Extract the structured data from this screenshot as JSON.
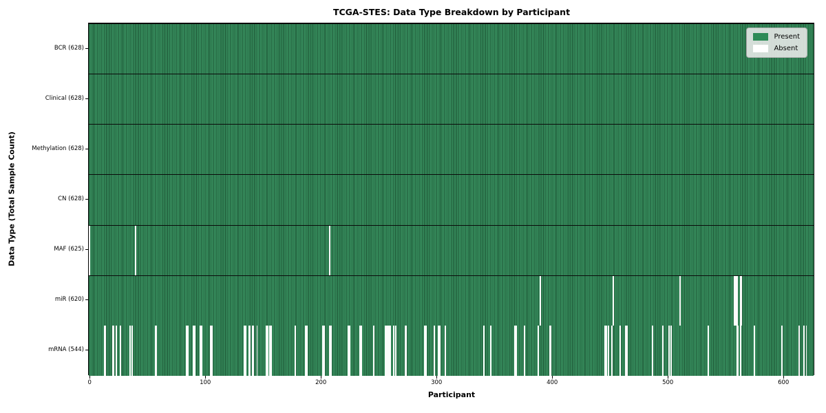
{
  "chart_data": {
    "type": "heatmap",
    "title": "TCGA-STES: Data Type Breakdown by Participant",
    "xlabel": "Participant",
    "ylabel": "Data Type (Total Sample Count)",
    "n_participants": 628,
    "x_ticks": [
      0,
      100,
      200,
      300,
      400,
      500,
      600
    ],
    "xlim": [
      0,
      628
    ],
    "grid": false,
    "legend_position": "upper right",
    "colors": {
      "present": "#2e8b57",
      "absent": "#ffffff",
      "cell_edge": "#1c4f33",
      "legend_bg": "#ebebeb"
    },
    "legend": [
      {
        "label": "Present",
        "color": "#2e8b57"
      },
      {
        "label": "Absent",
        "color": "#ffffff"
      }
    ],
    "rows": [
      {
        "label": "BCR (628)",
        "data_type": "BCR",
        "present_count": 628,
        "absent_participants": []
      },
      {
        "label": "Clinical (628)",
        "data_type": "Clinical",
        "present_count": 628,
        "absent_participants": []
      },
      {
        "label": "Methylation (628)",
        "data_type": "Methylation",
        "present_count": 628,
        "absent_participants": []
      },
      {
        "label": "CN (628)",
        "data_type": "CN",
        "present_count": 628,
        "absent_participants": []
      },
      {
        "label": "MAF (625)",
        "data_type": "MAF",
        "present_count": 625,
        "absent_participants": [
          0,
          40,
          208
        ]
      },
      {
        "label": "miR (620)",
        "data_type": "miR",
        "present_count": 620,
        "absent_participants": [
          390,
          453,
          511,
          558,
          559,
          560,
          563,
          564
        ]
      },
      {
        "label": "mRNA (544)",
        "data_type": "mRNA",
        "present_count": 544,
        "absent_participants": [
          13,
          14,
          20,
          21,
          23,
          27,
          35,
          37,
          57,
          58,
          84,
          85,
          90,
          91,
          96,
          97,
          105,
          106,
          134,
          135,
          138,
          139,
          141,
          142,
          145,
          153,
          154,
          156,
          157,
          178,
          187,
          188,
          202,
          203,
          208,
          209,
          224,
          225,
          234,
          235,
          246,
          256,
          257,
          258,
          259,
          260,
          263,
          265,
          273,
          274,
          290,
          291,
          298,
          302,
          303,
          308,
          341,
          347,
          368,
          369,
          376,
          388,
          398,
          399,
          446,
          447,
          449,
          452,
          459,
          464,
          465,
          487,
          496,
          501,
          503,
          535,
          560,
          561,
          563,
          575,
          599,
          614,
          618,
          620
        ]
      }
    ]
  }
}
